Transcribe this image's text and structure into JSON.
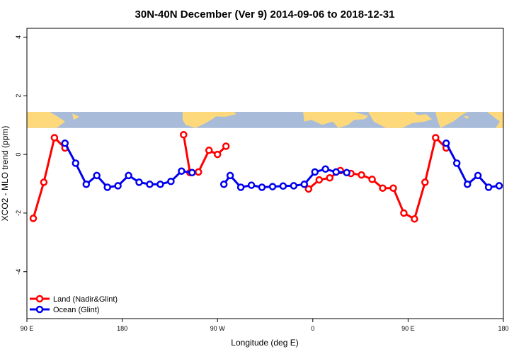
{
  "chart_data": {
    "type": "line",
    "title": "30N-40N December (Ver 9)   2014-09-06 to 2018-12-31",
    "xlabel": "Longitude (deg E)",
    "ylabel": "XCO2 - MLO trend (ppm)",
    "xlim": [
      90,
      540
    ],
    "ylim": [
      -5.6,
      4.3
    ],
    "x_ticks": [
      {
        "value": 90,
        "label": "90 E"
      },
      {
        "value": 180,
        "label": "180"
      },
      {
        "value": 270,
        "label": "90 W"
      },
      {
        "value": 360,
        "label": "0"
      },
      {
        "value": 450,
        "label": "90 E"
      },
      {
        "value": 540,
        "label": "180"
      }
    ],
    "y_ticks": [
      {
        "value": -4,
        "label": "-4"
      },
      {
        "value": -2,
        "label": "-2"
      },
      {
        "value": 0,
        "label": "0"
      },
      {
        "value": 2,
        "label": "2"
      },
      {
        "value": 4,
        "label": "4"
      }
    ],
    "map_band": {
      "y_top": 1.45,
      "y_bottom": 0.9,
      "ocean_color": "#a8bcd9",
      "land_color": "#fdd97b"
    },
    "legend": {
      "position": "bottom-left"
    },
    "series": [
      {
        "name": "Land (Nadir&Glint)",
        "color": "#ff0000",
        "segments": [
          [
            [
              96,
              -2.18
            ],
            [
              106,
              -0.95
            ],
            [
              116,
              0.57
            ],
            [
              126,
              0.22
            ]
          ],
          [
            [
              238,
              0.67
            ],
            [
              244,
              -0.62
            ],
            [
              252,
              -0.6
            ],
            [
              262,
              0.14
            ],
            [
              270,
              0.0
            ],
            [
              278,
              0.28
            ]
          ],
          [
            [
              356,
              -1.18
            ],
            [
              366,
              -0.87
            ],
            [
              376,
              -0.8
            ],
            [
              386,
              -0.55
            ],
            [
              396,
              -0.65
            ],
            [
              406,
              -0.7
            ],
            [
              416,
              -0.85
            ],
            [
              426,
              -1.15
            ],
            [
              436,
              -1.15
            ],
            [
              446,
              -2.0
            ],
            [
              456,
              -2.2
            ],
            [
              466,
              -0.95
            ],
            [
              476,
              0.57
            ],
            [
              486,
              0.22
            ]
          ]
        ]
      },
      {
        "name": "Ocean (Glint)",
        "color": "#0000ee",
        "segments": [
          [
            [
              126,
              0.38
            ],
            [
              136,
              -0.3
            ],
            [
              146,
              -1.02
            ],
            [
              156,
              -0.72
            ],
            [
              166,
              -1.12
            ],
            [
              176,
              -1.07
            ],
            [
              186,
              -0.72
            ],
            [
              196,
              -0.95
            ],
            [
              206,
              -1.02
            ],
            [
              216,
              -1.02
            ],
            [
              226,
              -0.92
            ],
            [
              236,
              -0.57
            ],
            [
              246,
              -0.62
            ]
          ],
          [
            [
              276,
              -1.02
            ],
            [
              282,
              -0.72
            ],
            [
              292,
              -1.12
            ],
            [
              302,
              -1.05
            ],
            [
              312,
              -1.12
            ],
            [
              322,
              -1.1
            ],
            [
              332,
              -1.08
            ],
            [
              342,
              -1.07
            ],
            [
              352,
              -1.02
            ],
            [
              362,
              -0.6
            ],
            [
              372,
              -0.5
            ],
            [
              382,
              -0.6
            ],
            [
              392,
              -0.62
            ]
          ],
          [
            [
              486,
              0.38
            ],
            [
              496,
              -0.3
            ],
            [
              506,
              -1.02
            ],
            [
              516,
              -0.72
            ],
            [
              526,
              -1.12
            ],
            [
              536,
              -1.07
            ]
          ]
        ]
      }
    ]
  }
}
